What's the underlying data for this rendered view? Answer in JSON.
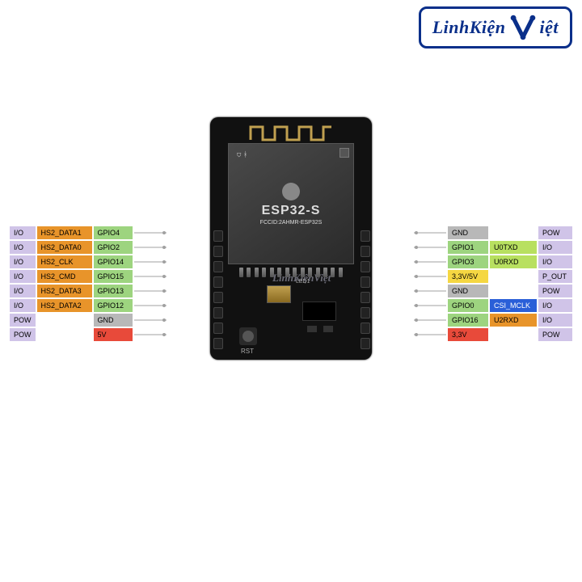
{
  "logo": {
    "brand_1": "LinhKiện",
    "brand_2": "iệt"
  },
  "chip": {
    "name": "ESP32-S",
    "fcc": "FCCID:2AHMR-ESP32S"
  },
  "board_labels": {
    "rst": "RST",
    "led": "LED1"
  },
  "watermark": "LinhKiệnViệt",
  "colors": {
    "purple": "#d0c4e8",
    "orange": "#e8942a",
    "green": "#9dd47f",
    "gray": "#b8b8b8",
    "red": "#e84a3a",
    "yellow": "#f5d742",
    "blue": "#2a5fd8",
    "lime": "#b8e060",
    "trace": "#a0a0a0"
  },
  "left": {
    "col1": [
      {
        "t": "I/O",
        "c": "purple"
      },
      {
        "t": "I/O",
        "c": "purple"
      },
      {
        "t": "I/O",
        "c": "purple"
      },
      {
        "t": "I/O",
        "c": "purple"
      },
      {
        "t": "I/O",
        "c": "purple"
      },
      {
        "t": "I/O",
        "c": "purple"
      },
      {
        "t": "POW",
        "c": "purple"
      },
      {
        "t": "POW",
        "c": "purple"
      }
    ],
    "col2": [
      {
        "t": "HS2_DATA1",
        "c": "orange"
      },
      {
        "t": "HS2_DATA0",
        "c": "orange"
      },
      {
        "t": "HS2_CLK",
        "c": "orange"
      },
      {
        "t": "HS2_CMD",
        "c": "orange"
      },
      {
        "t": "HS2_DATA3",
        "c": "orange"
      },
      {
        "t": "HS2_DATA2",
        "c": "orange"
      },
      {
        "t": "",
        "c": "empty"
      },
      {
        "t": "",
        "c": "empty"
      }
    ],
    "col3": [
      {
        "t": "GPIO4",
        "c": "green"
      },
      {
        "t": "GPIO2",
        "c": "green"
      },
      {
        "t": "GPIO14",
        "c": "green"
      },
      {
        "t": "GPIO15",
        "c": "green"
      },
      {
        "t": "GPIO13",
        "c": "green"
      },
      {
        "t": "GPIO12",
        "c": "green"
      },
      {
        "t": "GND",
        "c": "gray"
      },
      {
        "t": "5V",
        "c": "red"
      }
    ]
  },
  "right": {
    "col1": [
      {
        "t": "GND",
        "c": "gray"
      },
      {
        "t": "GPIO1",
        "c": "green"
      },
      {
        "t": "GPIO3",
        "c": "green"
      },
      {
        "t": "3,3V/5V",
        "c": "yellow"
      },
      {
        "t": "GND",
        "c": "gray"
      },
      {
        "t": "GPIO0",
        "c": "green"
      },
      {
        "t": "GPIO16",
        "c": "green"
      },
      {
        "t": "3,3V",
        "c": "red"
      }
    ],
    "col2": [
      {
        "t": "",
        "c": "empty"
      },
      {
        "t": "U0TXD",
        "c": "lime"
      },
      {
        "t": "U0RXD",
        "c": "lime"
      },
      {
        "t": "",
        "c": "empty"
      },
      {
        "t": "",
        "c": "empty"
      },
      {
        "t": "CSI_MCLK",
        "c": "blue"
      },
      {
        "t": "U2RXD",
        "c": "orange"
      },
      {
        "t": "",
        "c": "empty"
      }
    ],
    "col3": [
      {
        "t": "POW",
        "c": "purple"
      },
      {
        "t": "I/O",
        "c": "purple"
      },
      {
        "t": "I/O",
        "c": "purple"
      },
      {
        "t": "P_OUT",
        "c": "purple"
      },
      {
        "t": "POW",
        "c": "purple"
      },
      {
        "t": "I/O",
        "c": "purple"
      },
      {
        "t": "I/O",
        "c": "purple"
      },
      {
        "t": "POW",
        "c": "purple"
      }
    ]
  }
}
